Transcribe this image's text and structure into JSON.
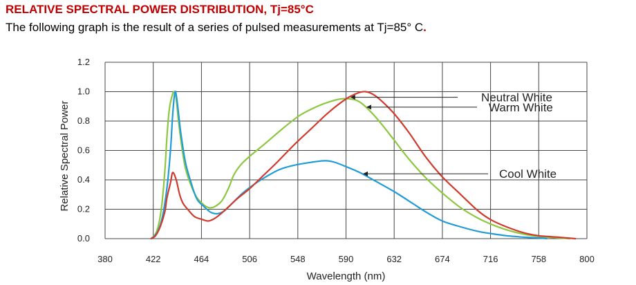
{
  "header": {
    "title": "RELATIVE SPECTRAL POWER DISTRIBUTION, Tj=85°C",
    "subtitle": "The following graph is the result of a series of pulsed measurements at Tj=85° C",
    "subtitle_end": "."
  },
  "chart_data": {
    "type": "line",
    "xlabel": "Wavelength (nm)",
    "ylabel": "Relative Spectral Power",
    "xlim": [
      380,
      800
    ],
    "ylim": [
      0,
      1.2
    ],
    "xticks": [
      380,
      422,
      464,
      506,
      548,
      590,
      632,
      674,
      716,
      758,
      800
    ],
    "yticks": [
      0.0,
      0.2,
      0.4,
      0.6,
      0.8,
      1.0,
      1.2
    ],
    "ytick_labels": [
      "0.0",
      "0.2",
      "0.4",
      "0.6",
      "0.8",
      "1.0",
      "1.2"
    ],
    "grid": true,
    "series": [
      {
        "name": "Neutral White",
        "color": "#d03a2c",
        "points": [
          [
            420,
            0.0
          ],
          [
            424,
            0.02
          ],
          [
            428,
            0.08
          ],
          [
            432,
            0.18
          ],
          [
            434,
            0.28
          ],
          [
            437,
            0.38
          ],
          [
            439,
            0.45
          ],
          [
            442,
            0.4
          ],
          [
            445,
            0.3
          ],
          [
            448,
            0.24
          ],
          [
            452,
            0.2
          ],
          [
            458,
            0.15
          ],
          [
            465,
            0.13
          ],
          [
            470,
            0.12
          ],
          [
            476,
            0.14
          ],
          [
            484,
            0.19
          ],
          [
            495,
            0.27
          ],
          [
            506,
            0.34
          ],
          [
            518,
            0.43
          ],
          [
            530,
            0.52
          ],
          [
            545,
            0.64
          ],
          [
            560,
            0.75
          ],
          [
            575,
            0.86
          ],
          [
            590,
            0.95
          ],
          [
            600,
            0.99
          ],
          [
            607,
            1.0
          ],
          [
            614,
            0.98
          ],
          [
            622,
            0.93
          ],
          [
            632,
            0.85
          ],
          [
            645,
            0.72
          ],
          [
            660,
            0.55
          ],
          [
            674,
            0.42
          ],
          [
            690,
            0.3
          ],
          [
            705,
            0.19
          ],
          [
            716,
            0.13
          ],
          [
            730,
            0.08
          ],
          [
            745,
            0.04
          ],
          [
            758,
            0.02
          ],
          [
            775,
            0.01
          ],
          [
            790,
            0.0
          ]
        ]
      },
      {
        "name": "Warm White",
        "color": "#8dc63f",
        "points": [
          [
            420,
            0.0
          ],
          [
            425,
            0.05
          ],
          [
            429,
            0.2
          ],
          [
            432,
            0.45
          ],
          [
            434,
            0.7
          ],
          [
            436,
            0.88
          ],
          [
            438,
            0.96
          ],
          [
            440,
            1.0
          ],
          [
            442,
            0.95
          ],
          [
            444,
            0.8
          ],
          [
            447,
            0.62
          ],
          [
            450,
            0.48
          ],
          [
            455,
            0.36
          ],
          [
            460,
            0.28
          ],
          [
            466,
            0.23
          ],
          [
            471,
            0.21
          ],
          [
            476,
            0.22
          ],
          [
            482,
            0.26
          ],
          [
            488,
            0.35
          ],
          [
            492,
            0.43
          ],
          [
            498,
            0.5
          ],
          [
            506,
            0.56
          ],
          [
            520,
            0.65
          ],
          [
            535,
            0.75
          ],
          [
            550,
            0.84
          ],
          [
            565,
            0.9
          ],
          [
            575,
            0.93
          ],
          [
            585,
            0.95
          ],
          [
            594,
            0.95
          ],
          [
            602,
            0.93
          ],
          [
            612,
            0.86
          ],
          [
            622,
            0.77
          ],
          [
            632,
            0.67
          ],
          [
            645,
            0.54
          ],
          [
            660,
            0.41
          ],
          [
            674,
            0.31
          ],
          [
            690,
            0.21
          ],
          [
            705,
            0.14
          ],
          [
            716,
            0.1
          ],
          [
            730,
            0.06
          ],
          [
            745,
            0.03
          ],
          [
            758,
            0.015
          ],
          [
            775,
            0.005
          ],
          [
            785,
            0.0
          ]
        ]
      },
      {
        "name": "Cool White",
        "color": "#1f9bd7",
        "points": [
          [
            421,
            0.0
          ],
          [
            426,
            0.05
          ],
          [
            430,
            0.15
          ],
          [
            434,
            0.35
          ],
          [
            437,
            0.6
          ],
          [
            439,
            0.85
          ],
          [
            441,
            1.0
          ],
          [
            443,
            0.92
          ],
          [
            446,
            0.72
          ],
          [
            450,
            0.52
          ],
          [
            455,
            0.38
          ],
          [
            460,
            0.27
          ],
          [
            466,
            0.22
          ],
          [
            472,
            0.18
          ],
          [
            478,
            0.17
          ],
          [
            484,
            0.19
          ],
          [
            492,
            0.25
          ],
          [
            500,
            0.31
          ],
          [
            510,
            0.37
          ],
          [
            520,
            0.42
          ],
          [
            532,
            0.47
          ],
          [
            545,
            0.5
          ],
          [
            560,
            0.52
          ],
          [
            572,
            0.53
          ],
          [
            580,
            0.52
          ],
          [
            590,
            0.49
          ],
          [
            602,
            0.45
          ],
          [
            616,
            0.39
          ],
          [
            632,
            0.32
          ],
          [
            648,
            0.24
          ],
          [
            660,
            0.18
          ],
          [
            674,
            0.12
          ],
          [
            690,
            0.08
          ],
          [
            705,
            0.05
          ],
          [
            716,
            0.035
          ],
          [
            730,
            0.02
          ],
          [
            745,
            0.01
          ],
          [
            758,
            0.005
          ],
          [
            765,
            0.0
          ]
        ]
      }
    ],
    "annotations": [
      {
        "text": "Neutral White",
        "series": "Neutral White",
        "point_x": 593
      },
      {
        "text": "Warm White",
        "series": "Warm White",
        "point_x": 607
      },
      {
        "text": "Cool White",
        "series": "Cool White",
        "point_x": 604
      }
    ]
  }
}
